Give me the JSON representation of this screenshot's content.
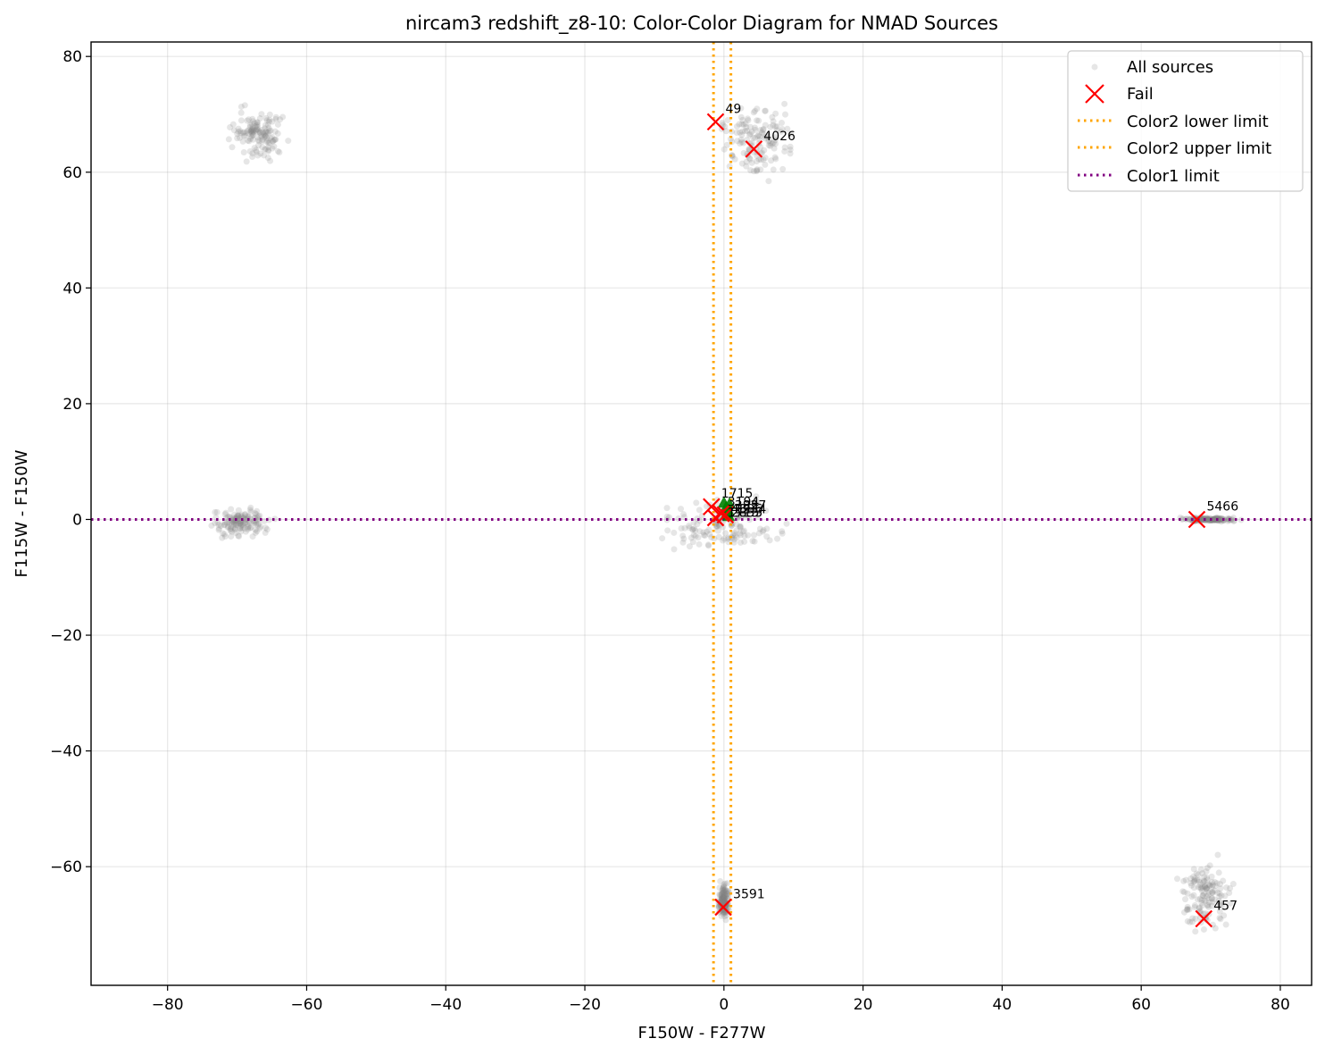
{
  "chart_data": {
    "type": "scatter",
    "title": "nircam3 redshift_z8-10: Color-Color Diagram for NMAD Sources",
    "xlabel": "F150W - F277W",
    "ylabel": "F115W - F150W",
    "xlim": [
      -91,
      84.5
    ],
    "ylim": [
      -80.5,
      82.5
    ],
    "xticks": [
      -80,
      -60,
      -40,
      -20,
      0,
      20,
      40,
      60,
      80
    ],
    "yticks": [
      -60,
      -40,
      -20,
      0,
      20,
      40,
      60,
      80
    ],
    "tick_labels": {
      "x": [
        "−80",
        "−60",
        "−40",
        "−20",
        "0",
        "20",
        "40",
        "60",
        "80"
      ],
      "y": [
        "−60",
        "−40",
        "−20",
        "0",
        "20",
        "40",
        "60",
        "80"
      ]
    },
    "grid": true,
    "legend_placement": "top-right",
    "legend": [
      "All sources",
      "Fail",
      "Color2 lower limit",
      "Color2 upper limit",
      "Color1 limit"
    ],
    "colors": {
      "all_sources": "#808080",
      "fail": "#ff0000",
      "pass": "#008000",
      "color2_limits": "#ffa500",
      "color1_limit": "#800080"
    },
    "all_source_clusters": [
      {
        "x": [
          -2,
          12
        ],
        "y": [
          58,
          73
        ]
      },
      {
        "x": [
          -72,
          -62
        ],
        "y": [
          61,
          72
        ]
      },
      {
        "x": [
          -75,
          -64
        ],
        "y": [
          -4,
          3
        ]
      },
      {
        "x": [
          -13,
          12
        ],
        "y": [
          -7,
          5
        ]
      },
      {
        "x": [
          65,
          75
        ],
        "y": [
          -0.5,
          0.5
        ]
      },
      {
        "x": [
          -1,
          1
        ],
        "y": [
          -70,
          -62
        ]
      },
      {
        "x": [
          64,
          74
        ],
        "y": [
          -73,
          -57
        ]
      }
    ],
    "color2_lower_limit": -1.5,
    "color2_upper_limit": 1.0,
    "color1_limit": 0.0,
    "fail_points": [
      {
        "x": -1.2,
        "y": 68.7,
        "label": "49"
      },
      {
        "x": 4.3,
        "y": 64.0,
        "label": "4026"
      },
      {
        "x": 68.0,
        "y": 0.0,
        "label": "5466"
      },
      {
        "x": -0.1,
        "y": -67.0,
        "label": "3591"
      },
      {
        "x": 69.0,
        "y": -69.0,
        "label": "457"
      },
      {
        "x": -1.8,
        "y": 2.2,
        "label": "1715"
      },
      {
        "x": -0.4,
        "y": 1.0,
        "label": ""
      },
      {
        "x": -1.2,
        "y": 0.3,
        "label": ""
      },
      {
        "x": 0.2,
        "y": 0.8,
        "label": ""
      }
    ],
    "pass_points": [
      {
        "x": 0.3,
        "y": 2.0
      },
      {
        "x": 0.6,
        "y": 1.5
      },
      {
        "x": 0.8,
        "y": 2.6
      },
      {
        "x": 0.4,
        "y": 0.9
      },
      {
        "x": 0.0,
        "y": 2.8
      },
      {
        "x": 0.7,
        "y": 0.5
      }
    ],
    "crowded_labels": [
      "1715",
      "4396",
      "3827",
      "3194",
      "2855",
      "1234"
    ]
  }
}
